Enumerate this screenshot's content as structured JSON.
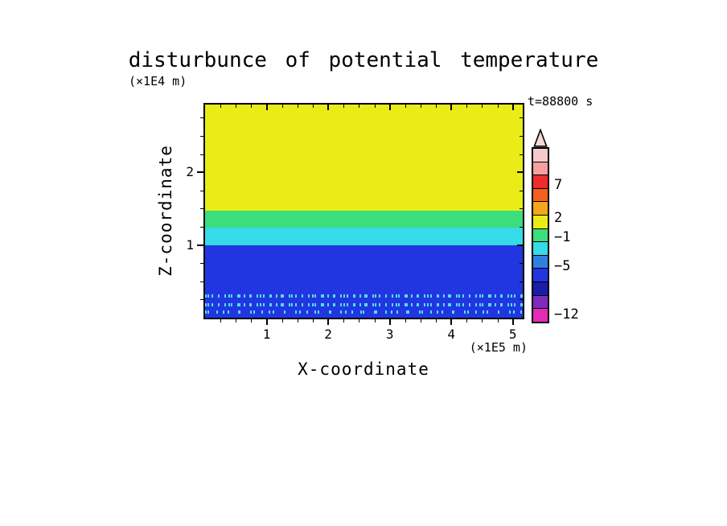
{
  "figure": {
    "background": "#ffffff"
  },
  "chart_data": {
    "type": "heatmap",
    "title": "disturbunce of potential temperature",
    "xlabel": "X-coordinate",
    "ylabel": "Z-coordinate",
    "x_unit": "(×1E5 m)",
    "y_unit": "(×1E4 m)",
    "time_annotation": "t=88800 s",
    "xlim": [
      0,
      5.16
    ],
    "ylim": [
      0,
      2.93
    ],
    "x_ticks": [
      1,
      2,
      3,
      4,
      5
    ],
    "y_ticks": [
      1,
      2
    ],
    "minor_tick_step_x": 0.25,
    "minor_tick_step_y": 0.25,
    "grid": false,
    "bands": [
      {
        "z_from": 1.47,
        "z_to": 2.93,
        "color": "#e9ec17",
        "approx_value": "between -1 and 2"
      },
      {
        "z_from": 1.24,
        "z_to": 1.47,
        "color": "#3cdd7c",
        "approx_value": "near -1"
      },
      {
        "z_from": 1.0,
        "z_to": 1.24,
        "color": "#35dbe8",
        "approx_value": "between -5 and -1"
      },
      {
        "z_from": 0.0,
        "z_to": 1.0,
        "color": "#2136e0",
        "approx_value": "below -5"
      }
    ],
    "speckle_lines": [
      {
        "z": 0.3,
        "color": "#55dced",
        "density": "dense"
      },
      {
        "z": 0.18,
        "color": "#55dced",
        "density": "dense"
      },
      {
        "z": 0.08,
        "color": "#55dced",
        "density": "sparse"
      }
    ],
    "colorbar": {
      "arrow_color": "#f6d8d8",
      "segments": [
        "#f6caca",
        "#f2a0a0",
        "#ee2c2c",
        "#f4611c",
        "#f4a51e",
        "#e9ec17",
        "#3cdd7c",
        "#35dbe8",
        "#2f7fe0",
        "#2136e0",
        "#1c1ca8",
        "#7d2bbf",
        "#e32bb4"
      ],
      "labels": [
        {
          "text": "7",
          "pos": 0.21
        },
        {
          "text": "2",
          "pos": 0.4
        },
        {
          "text": "−1",
          "pos": 0.51
        },
        {
          "text": "−5",
          "pos": 0.68
        },
        {
          "text": "−12",
          "pos": 0.96
        }
      ]
    }
  }
}
